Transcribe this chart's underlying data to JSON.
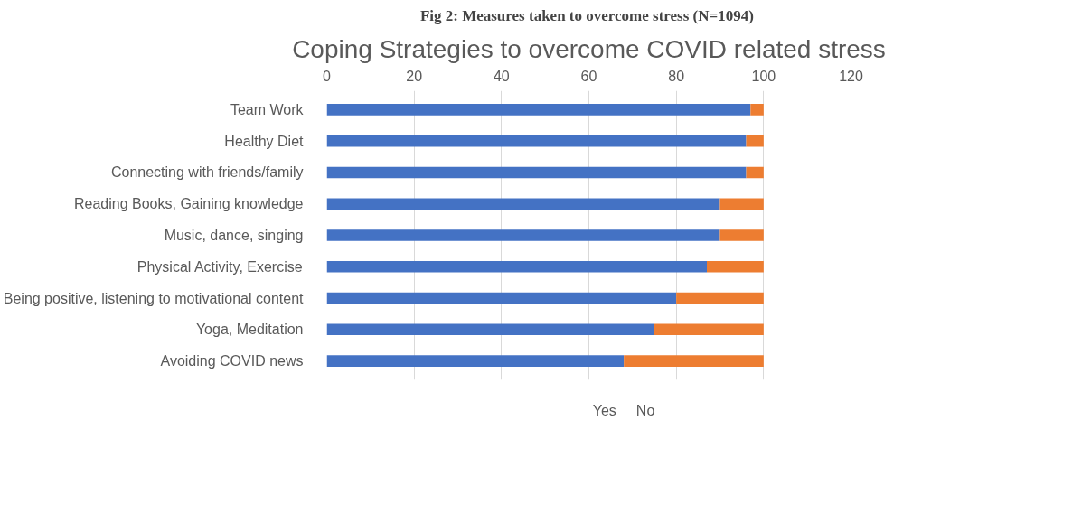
{
  "chart_data": {
    "type": "bar",
    "orientation": "horizontal",
    "stacked": true,
    "title": "Coping Strategies to overcome COVID related stress",
    "annotations": [
      "Fig 2:  Measures taken to overcome stress (N=1094)"
    ],
    "categories": [
      "Team Work",
      "Healthy Diet",
      "Connecting with friends/family",
      "Reading Books, Gaining knowledge",
      "Music, dance, singing",
      "Physical Activity, Exercise",
      "Being positive, listening to motivational content",
      "Yoga, Meditation",
      "Avoiding COVID news"
    ],
    "series": [
      {
        "name": "Yes",
        "color": "#4472c4",
        "values": [
          97,
          96,
          96,
          90,
          90,
          87,
          80,
          75,
          68
        ]
      },
      {
        "name": "No",
        "color": "#ed7d31",
        "values": [
          3,
          4,
          4,
          10,
          10,
          13,
          20,
          25,
          32
        ]
      }
    ],
    "xlim": [
      0,
      120
    ],
    "xticks": [
      0,
      20,
      40,
      60,
      80,
      100,
      120
    ],
    "grid": "x",
    "legend": "bottom"
  }
}
